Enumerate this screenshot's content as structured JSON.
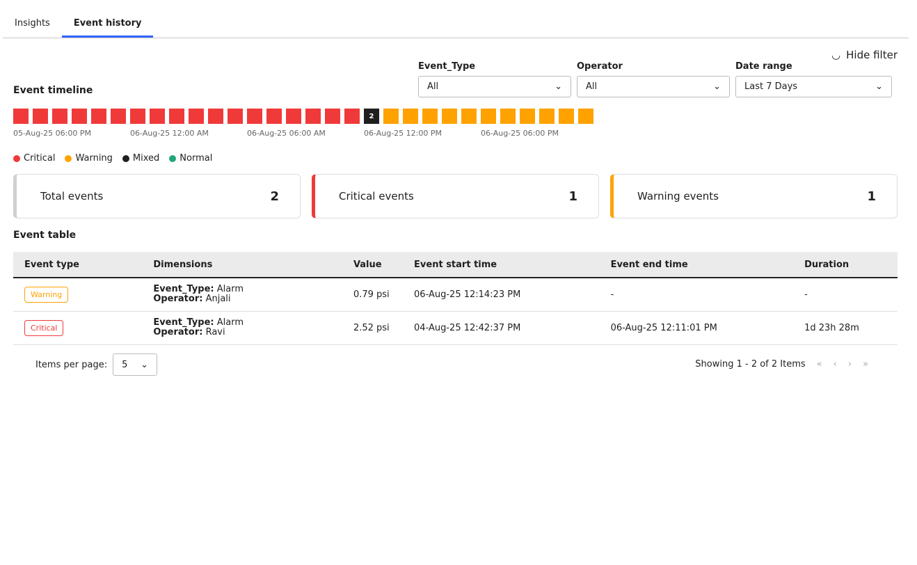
{
  "tabs": [
    {
      "label": "Insights",
      "active": false
    },
    {
      "label": "Event history",
      "active": true
    }
  ],
  "hide_filter": "Hide filter",
  "filters": [
    {
      "label": "Event_Type",
      "value": "All"
    },
    {
      "label": "Operator",
      "value": "All"
    },
    {
      "label": "Date range",
      "value": "Last 7 Days"
    }
  ],
  "timeline": {
    "title": "Event timeline",
    "blocks": [
      "critical",
      "critical",
      "critical",
      "critical",
      "critical",
      "critical",
      "critical",
      "critical",
      "critical",
      "critical",
      "critical",
      "critical",
      "critical",
      "critical",
      "critical",
      "critical",
      "critical",
      "critical",
      "mixed",
      "warning",
      "warning",
      "warning",
      "warning",
      "warning",
      "warning",
      "warning",
      "warning",
      "warning",
      "warning",
      "warning"
    ],
    "mixed_count": "2",
    "ticks": [
      "05-Aug-25 06:00 PM",
      "06-Aug-25 12:00 AM",
      "06-Aug-25 06:00 AM",
      "06-Aug-25 12:00 PM",
      "06-Aug-25 06:00 PM"
    ],
    "legend": [
      {
        "label": "Critical",
        "color": "#f03a3a"
      },
      {
        "label": "Warning",
        "color": "#ffa200"
      },
      {
        "label": "Mixed",
        "color": "#1f1f1f"
      },
      {
        "label": "Normal",
        "color": "#21a67a"
      }
    ]
  },
  "cards": [
    {
      "label": "Total events",
      "value": "2",
      "color": "#d0d0d0"
    },
    {
      "label": "Critical events",
      "value": "1",
      "color": "#f03a3a"
    },
    {
      "label": "Warning events",
      "value": "1",
      "color": "#ffa200"
    }
  ],
  "table": {
    "title": "Event table",
    "columns": [
      "Event type",
      "Dimensions",
      "Value",
      "Event start time",
      "Event end time",
      "Duration"
    ],
    "rows": [
      {
        "type": "Warning",
        "k1": "Event_Type:",
        "v1": "Alarm",
        "k2": "Operator:",
        "v2": "Anjali",
        "value": "0.79 psi",
        "start": "06-Aug-25 12:14:23 PM",
        "end": "-",
        "duration": "-"
      },
      {
        "type": "Critical",
        "k1": "Event_Type:",
        "v1": "Alarm",
        "k2": "Operator:",
        "v2": "Ravi",
        "value": "2.52 psi",
        "start": "04-Aug-25 12:42:37 PM",
        "end": "06-Aug-25 12:11:01 PM",
        "duration": "1d 23h 28m"
      }
    ]
  },
  "pagination": {
    "items_label": "Items per page:",
    "per_page": "5",
    "showing": "Showing 1 - 2 of 2 Items"
  }
}
